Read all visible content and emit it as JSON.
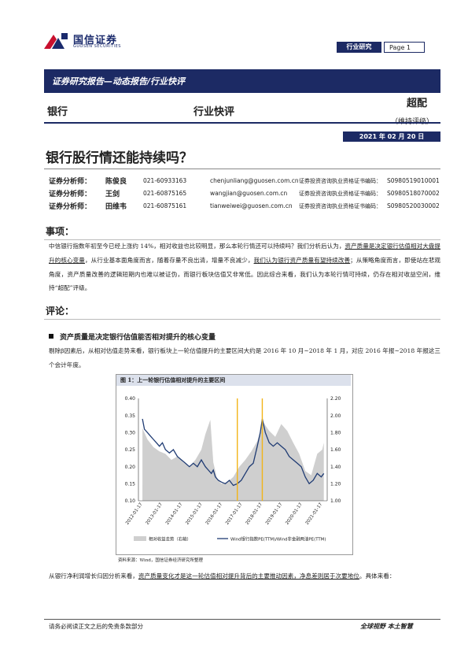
{
  "header": {
    "logo_cn": "国信证券",
    "logo_en": "GUOSEN SECURITIES",
    "tag": "行业研究",
    "page": "Page 1"
  },
  "band": {
    "text": "证券研究报告—动态报告/行业快评"
  },
  "meta": {
    "sector": "银行",
    "report_type": "行业快评",
    "rating": "超配",
    "rating_sub": "（维持评级）",
    "date": "2021 年 02 月 20 日"
  },
  "title": "银行股行情还能持续吗？",
  "analysts": [
    {
      "role": "证券分析师：",
      "name": "陈俊良",
      "tel": "021-60933163",
      "email": "chenjunliang@guosen.com.cn",
      "cert_label": "证券投资咨询执业资格证书编码：",
      "cert": "S0980519010001"
    },
    {
      "role": "证券分析师：",
      "name": "王剑",
      "tel": "021-60875165",
      "email": "wangjian@guosen.com.cn",
      "cert_label": "证券投资咨询执业资格证书编码：",
      "cert": "S0980518070002"
    },
    {
      "role": "证券分析师：",
      "name": "田维韦",
      "tel": "021-60875161",
      "email": "tianweiwei@guosen.com.cn",
      "cert_label": "证券投资咨询执业资格证书编码：",
      "cert": "S0980520030002"
    }
  ],
  "sections": {
    "events": {
      "heading": "事项：",
      "p1": "中信银行指数年初至今已经上涨约 14%，相对收益也比较明显，那么本轮行情还可以持续吗？我们分析后认为，",
      "p1_u1": "资产质量是决定银行估值相对大盘提升的核心变量",
      "p2": "，从行业基本面角度而言，随着存量不良出清，增量不良减少，",
      "p2_u": "我们认为银行资产质量有望持续改善",
      "p3": "；从策略角度而言，即使站在悲观角度，资产质量改善的逻辑短期内也难以被证伪，而银行板块估值又非常低。因此综合来看，我们认为本轮行情可持续，仍存在相对收益空间，维持“超配”评级。"
    },
    "comments": {
      "heading": "评论：",
      "subheading": "资产质量是决定银行估值能否相对提升的核心变量",
      "p1": "剔除β因素后，从相对估值走势来看，银行板块上一轮估值提升的主要区间大约是 2016 年 10 月~2018 年 1 月，对应 2016 年报~2018 年报这三个会计年度。",
      "p2_a": "从银行净利润增长归因分析来看，",
      "p2_u": "资产质量变化才是这一轮估值相对提升背后的主要推动因素，净息差则居于次要地位",
      "p2_b": "。具体来看："
    }
  },
  "figure": {
    "title": "图 1：上一轮银行估值相对提升的主要区间",
    "source": "资料来源：Wind，国信证券经济研究所整理"
  },
  "chart_data": {
    "type": "area",
    "x_ticks": [
      "2012-01-17",
      "2013-01-17",
      "2014-01-17",
      "2015-01-17",
      "2016-01-17",
      "2017-01-17",
      "2018-01-17",
      "2019-01-17",
      "2020-01-17",
      "2021-01-17"
    ],
    "y_left_ticks": [
      "0.40",
      "0.35",
      "0.30",
      "0.25",
      "0.20",
      "0.15",
      "0.10"
    ],
    "y_right_ticks": [
      "2.20",
      "2.00",
      "1.80",
      "1.60",
      "1.40",
      "1.20",
      "1.00"
    ],
    "ylim_left": [
      0.1,
      0.4
    ],
    "ylim_right": [
      1.0,
      2.2
    ],
    "series": [
      {
        "name": "相对收益走势（右轴）",
        "axis": "right",
        "color": "#cfcfcf",
        "x": [
          2012.05,
          2012.3,
          2012.6,
          2012.9,
          2013.2,
          2013.5,
          2013.8,
          2014.1,
          2014.4,
          2014.7,
          2015.0,
          2015.2,
          2015.45,
          2015.6,
          2015.8,
          2016.0,
          2016.3,
          2016.6,
          2016.9,
          2017.2,
          2017.5,
          2017.8,
          2018.1,
          2018.4,
          2018.7,
          2019.0,
          2019.3,
          2019.6,
          2019.9,
          2020.2,
          2020.5,
          2020.8,
          2021.05,
          2021.13
        ],
        "values": [
          1.85,
          1.72,
          1.63,
          1.58,
          1.55,
          1.48,
          1.52,
          1.45,
          1.4,
          1.48,
          1.6,
          1.78,
          1.95,
          1.45,
          1.25,
          1.2,
          1.22,
          1.28,
          1.4,
          1.48,
          1.58,
          1.7,
          1.92,
          1.82,
          1.75,
          1.9,
          1.82,
          1.68,
          1.55,
          1.35,
          1.3,
          1.55,
          1.6,
          1.68
        ]
      },
      {
        "name": "Wind银行指数PE(TTM)/Wind非金融两油PE(TTM)",
        "axis": "left",
        "color": "#1f3b73",
        "x": [
          2012.05,
          2012.15,
          2012.3,
          2012.45,
          2012.6,
          2012.75,
          2012.9,
          2013.05,
          2013.2,
          2013.4,
          2013.6,
          2013.8,
          2014.0,
          2014.2,
          2014.4,
          2014.6,
          2014.8,
          2015.0,
          2015.2,
          2015.35,
          2015.5,
          2015.6,
          2015.7,
          2015.85,
          2016.0,
          2016.2,
          2016.4,
          2016.6,
          2016.8,
          2017.0,
          2017.2,
          2017.4,
          2017.6,
          2017.8,
          2017.95,
          2018.05,
          2018.2,
          2018.4,
          2018.6,
          2018.8,
          2019.0,
          2019.2,
          2019.4,
          2019.6,
          2019.8,
          2020.0,
          2020.2,
          2020.4,
          2020.6,
          2020.8,
          2021.0,
          2021.13
        ],
        "values": [
          0.34,
          0.31,
          0.3,
          0.29,
          0.28,
          0.27,
          0.26,
          0.27,
          0.25,
          0.24,
          0.25,
          0.23,
          0.22,
          0.21,
          0.2,
          0.21,
          0.2,
          0.22,
          0.2,
          0.19,
          0.18,
          0.19,
          0.17,
          0.16,
          0.155,
          0.15,
          0.16,
          0.145,
          0.15,
          0.16,
          0.18,
          0.2,
          0.21,
          0.26,
          0.3,
          0.34,
          0.3,
          0.27,
          0.26,
          0.27,
          0.26,
          0.25,
          0.23,
          0.22,
          0.21,
          0.2,
          0.17,
          0.15,
          0.16,
          0.18,
          0.17,
          0.18
        ]
      }
    ],
    "markers": [
      2016.8,
      2018.05
    ],
    "marker_color": "#f2b418",
    "grid": false,
    "legend": "bottom"
  },
  "footer": {
    "left": "请务必阅读正文之后的免责条款部分",
    "right": "全球视野   本土智慧"
  }
}
